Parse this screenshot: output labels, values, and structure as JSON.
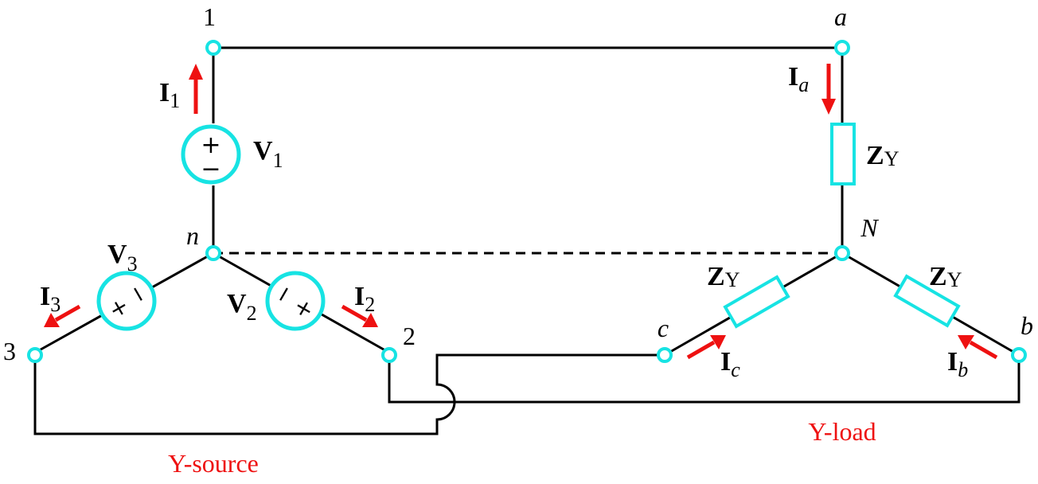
{
  "colors": {
    "component": "#17e3e3",
    "arrow": "#ee1111",
    "wire": "#000000",
    "caption": "#ee1111"
  },
  "nodes": {
    "n1": "1",
    "n2": "2",
    "n3": "3",
    "neutral_source": "n",
    "a": "a",
    "b": "b",
    "c": "c",
    "neutral_load": "N"
  },
  "sources": {
    "v1": {
      "letter": "V",
      "sub": "1",
      "plus": "+",
      "minus": "−"
    },
    "v2": {
      "letter": "V",
      "sub": "2",
      "plus": "+",
      "minus": "−"
    },
    "v3": {
      "letter": "V",
      "sub": "3",
      "plus": "+",
      "minus": "−"
    }
  },
  "currents": {
    "i1": {
      "letter": "I",
      "sub": "1"
    },
    "i2": {
      "letter": "I",
      "sub": "2"
    },
    "i3": {
      "letter": "I",
      "sub": "3"
    },
    "ia": {
      "letter": "I",
      "sub": "a"
    },
    "ib": {
      "letter": "I",
      "sub": "b"
    },
    "ic": {
      "letter": "I",
      "sub": "c"
    }
  },
  "impedance": {
    "letter": "Z",
    "sub": "Y"
  },
  "captions": {
    "source": "Y-source",
    "load": "Y-load"
  }
}
